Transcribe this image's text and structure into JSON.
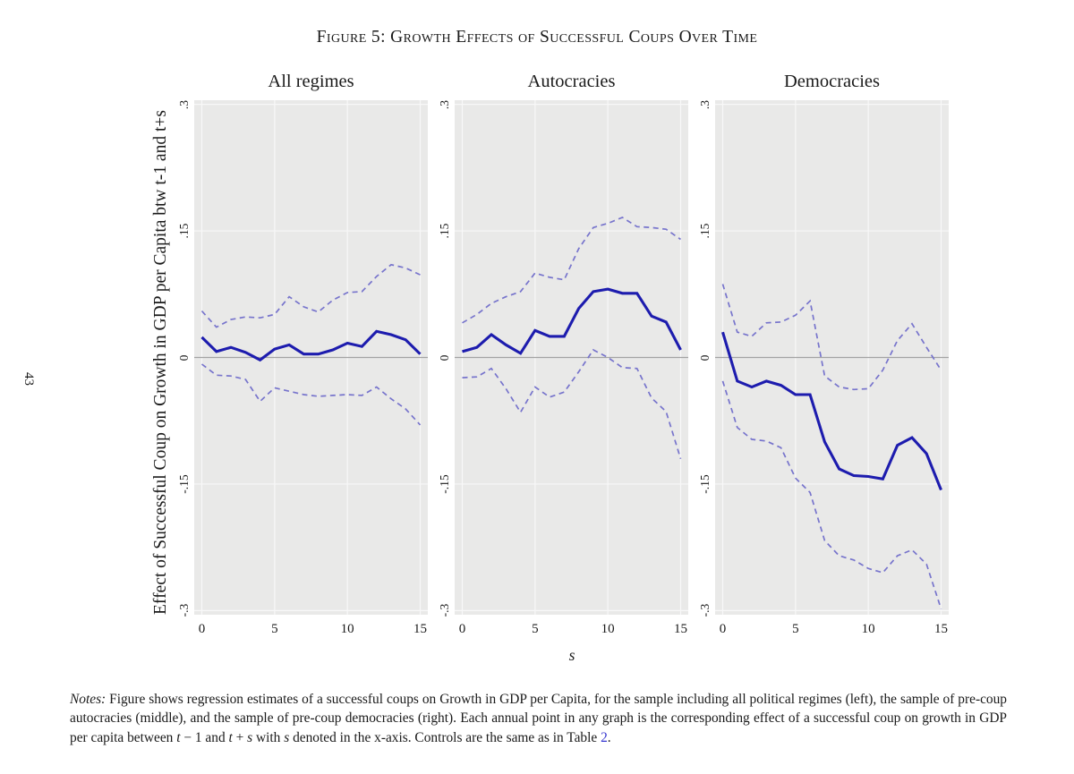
{
  "page": {
    "number": "43"
  },
  "figure": {
    "title": "Figure 5: Growth Effects of Successful Coups Over Time",
    "y_axis_label": "Effect of Successful Coup on Growth in GDP per Capita btw t-1 and t+s",
    "x_axis_label": "s"
  },
  "colors": {
    "estimate_line": "#1d1cae",
    "ci_line": "#7774cc",
    "plot_background": "#e9e9e8",
    "gridline": "#f8f8f8",
    "zero_line": "#a3a3a3",
    "text": "#1a1a1a",
    "link": "#3434cf"
  },
  "axes": {
    "xticks": [
      {
        "label": "0",
        "value": 0
      },
      {
        "label": "5",
        "value": 5
      },
      {
        "label": "10",
        "value": 10
      },
      {
        "label": "15",
        "value": 15
      }
    ],
    "yticks": [
      {
        "label": ".3",
        "value": 0.3
      },
      {
        "label": ".15",
        "value": 0.15
      },
      {
        "label": "0",
        "value": 0
      },
      {
        "label": "-.15",
        "value": -0.15
      },
      {
        "label": "-.3",
        "value": -0.3
      }
    ],
    "xlim": [
      0,
      15
    ],
    "ylim": [
      -0.3,
      0.3
    ],
    "grid": true
  },
  "chart_data": [
    {
      "type": "line",
      "title": "All regimes",
      "x": [
        0,
        1,
        2,
        3,
        4,
        5,
        6,
        7,
        8,
        9,
        10,
        11,
        12,
        13,
        14,
        15
      ],
      "series": [
        {
          "name": "ci-upper",
          "style": "dashed",
          "values": [
            0.055,
            0.036,
            0.045,
            0.048,
            0.047,
            0.051,
            0.072,
            0.06,
            0.054,
            0.068,
            0.077,
            0.078,
            0.096,
            0.11,
            0.106,
            0.098
          ]
        },
        {
          "name": "ci-lower",
          "style": "dashed",
          "values": [
            -0.008,
            -0.021,
            -0.022,
            -0.026,
            -0.052,
            -0.036,
            -0.04,
            -0.044,
            -0.046,
            -0.045,
            -0.044,
            -0.045,
            -0.035,
            -0.049,
            -0.061,
            -0.08
          ]
        },
        {
          "name": "estimate",
          "style": "solid",
          "values": [
            0.024,
            0.007,
            0.012,
            0.006,
            -0.003,
            0.01,
            0.015,
            0.004,
            0.004,
            0.009,
            0.017,
            0.013,
            0.031,
            0.027,
            0.021,
            0.004
          ]
        }
      ]
    },
    {
      "type": "line",
      "title": "Autocracies",
      "x": [
        0,
        1,
        2,
        3,
        4,
        5,
        6,
        7,
        8,
        9,
        10,
        11,
        12,
        13,
        14,
        15
      ],
      "series": [
        {
          "name": "ci-upper",
          "style": "dashed",
          "values": [
            0.041,
            0.051,
            0.064,
            0.072,
            0.078,
            0.1,
            0.095,
            0.092,
            0.129,
            0.154,
            0.159,
            0.166,
            0.155,
            0.154,
            0.152,
            0.14
          ]
        },
        {
          "name": "ci-lower",
          "style": "dashed",
          "values": [
            -0.024,
            -0.023,
            -0.013,
            -0.037,
            -0.065,
            -0.035,
            -0.047,
            -0.041,
            -0.017,
            0.009,
            0.0,
            -0.012,
            -0.013,
            -0.048,
            -0.064,
            -0.12
          ]
        },
        {
          "name": "estimate",
          "style": "solid",
          "values": [
            0.007,
            0.012,
            0.027,
            0.015,
            0.005,
            0.032,
            0.025,
            0.025,
            0.058,
            0.078,
            0.081,
            0.076,
            0.076,
            0.049,
            0.042,
            0.009
          ]
        }
      ]
    },
    {
      "type": "line",
      "title": "Democracies",
      "x": [
        0,
        1,
        2,
        3,
        4,
        5,
        6,
        7,
        8,
        9,
        10,
        11,
        12,
        13,
        14,
        15
      ],
      "series": [
        {
          "name": "ci-upper",
          "style": "dashed",
          "values": [
            0.087,
            0.03,
            0.025,
            0.041,
            0.042,
            0.05,
            0.067,
            -0.022,
            -0.035,
            -0.038,
            -0.037,
            -0.015,
            0.02,
            0.04,
            0.012,
            -0.015
          ]
        },
        {
          "name": "ci-lower",
          "style": "dashed",
          "values": [
            -0.028,
            -0.083,
            -0.097,
            -0.099,
            -0.107,
            -0.143,
            -0.16,
            -0.217,
            -0.235,
            -0.24,
            -0.25,
            -0.255,
            -0.235,
            -0.228,
            -0.245,
            -0.298
          ]
        },
        {
          "name": "estimate",
          "style": "solid",
          "values": [
            0.03,
            -0.028,
            -0.035,
            -0.028,
            -0.033,
            -0.044,
            -0.044,
            -0.1,
            -0.132,
            -0.14,
            -0.141,
            -0.144,
            -0.104,
            -0.095,
            -0.114,
            -0.157
          ]
        }
      ]
    }
  ],
  "notes": {
    "label": "Notes:",
    "text_a": " Figure shows regression estimates of a successful coups on Growth in GDP per Capita, for the sample including all political regimes (left), the sample of pre-coup autocracies (middle), and the sample of pre-coup democracies (right). Each annual point in any graph is the corresponding effect of a successful coup on growth in GDP per capita between ",
    "var_t1": "t",
    "text_b": " − 1 and ",
    "var_t2": "t",
    "text_c": " + ",
    "var_s1": "s",
    "text_d": " with ",
    "var_s2": "s",
    "text_e": " denoted in the x-axis. Controls are the same as in Table ",
    "link_label": "2",
    "text_f": "."
  }
}
